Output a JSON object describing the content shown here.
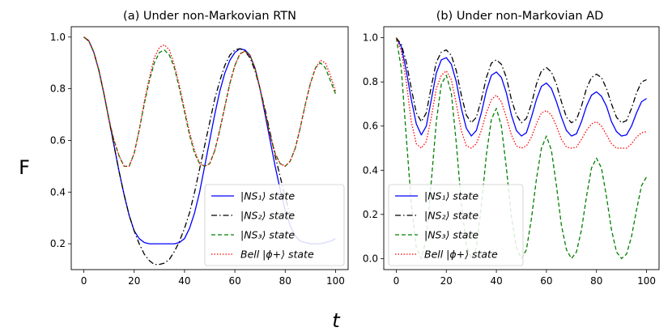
{
  "figure": {
    "ylabel": "F",
    "xlabel": "t"
  },
  "chart_data": [
    {
      "type": "line",
      "title": "(a) Under non-Markovian RTN",
      "xlim": [
        -5,
        105
      ],
      "ylim": [
        0.1,
        1.04
      ],
      "xticks": [
        "0",
        "20",
        "40",
        "60",
        "80",
        "100"
      ],
      "xtick_values": [
        0,
        20,
        40,
        60,
        80,
        100
      ],
      "yticks": [
        "0.2",
        "0.4",
        "0.6",
        "0.8",
        "1.0"
      ],
      "ytick_values": [
        0.2,
        0.4,
        0.6,
        0.8,
        1.0
      ],
      "legend_position": "lower-right",
      "series": [
        {
          "name": "|NS₁⟩ state",
          "color": "#0000ff",
          "dash": "",
          "x": [
            0,
            2,
            4,
            6,
            8,
            10,
            12,
            14,
            16,
            18,
            20,
            22,
            24,
            26,
            28,
            30,
            32,
            34,
            36,
            38,
            40,
            42,
            44,
            46,
            48,
            50,
            52,
            54,
            56,
            58,
            60,
            62,
            64,
            66,
            68,
            70,
            72,
            74,
            76,
            78,
            80,
            82,
            84,
            86,
            88,
            90,
            92,
            94,
            96,
            98,
            100
          ],
          "y": [
            1.0,
            0.985,
            0.94,
            0.87,
            0.78,
            0.68,
            0.58,
            0.48,
            0.39,
            0.31,
            0.25,
            0.22,
            0.205,
            0.2,
            0.2,
            0.2,
            0.2,
            0.2,
            0.2,
            0.205,
            0.22,
            0.26,
            0.32,
            0.4,
            0.5,
            0.6,
            0.7,
            0.79,
            0.86,
            0.91,
            0.94,
            0.955,
            0.95,
            0.93,
            0.88,
            0.8,
            0.7,
            0.6,
            0.5,
            0.41,
            0.33,
            0.27,
            0.23,
            0.21,
            0.205,
            0.2,
            0.2,
            0.2,
            0.205,
            0.21,
            0.22
          ]
        },
        {
          "name": "|NS₂⟩ state",
          "color": "#000000",
          "dash": "7,3,1.5,3",
          "x": [
            0,
            2,
            4,
            6,
            8,
            10,
            12,
            14,
            16,
            18,
            20,
            22,
            24,
            26,
            28,
            30,
            32,
            34,
            36,
            38,
            40,
            42,
            44,
            46,
            48,
            50,
            52,
            54,
            56,
            58,
            60,
            62,
            64,
            66,
            68,
            70,
            72,
            74,
            76,
            78,
            80,
            82
          ],
          "y": [
            1.0,
            0.985,
            0.94,
            0.87,
            0.78,
            0.68,
            0.58,
            0.48,
            0.39,
            0.31,
            0.25,
            0.2,
            0.16,
            0.135,
            0.12,
            0.12,
            0.125,
            0.14,
            0.17,
            0.21,
            0.26,
            0.32,
            0.4,
            0.49,
            0.58,
            0.67,
            0.76,
            0.83,
            0.89,
            0.93,
            0.95,
            0.955,
            0.945,
            0.92,
            0.87,
            0.8,
            0.72,
            0.63,
            0.54,
            0.46,
            0.38,
            0.31
          ]
        },
        {
          "name": "|NS₃⟩ state",
          "color": "#008000",
          "dash": "5,3",
          "x": [
            0,
            2,
            4,
            6,
            8,
            10,
            12,
            14,
            16,
            18,
            20,
            22,
            24,
            26,
            28,
            30,
            32,
            34,
            36,
            38,
            40,
            42,
            44,
            46,
            48,
            50,
            52,
            54,
            56,
            58,
            60,
            62,
            64,
            66,
            68,
            70,
            72,
            74,
            76,
            78,
            80,
            82,
            84,
            86,
            88,
            90,
            92,
            94,
            96,
            98,
            100
          ],
          "y": [
            1.0,
            0.985,
            0.94,
            0.87,
            0.78,
            0.68,
            0.6,
            0.54,
            0.5,
            0.5,
            0.55,
            0.64,
            0.74,
            0.83,
            0.9,
            0.94,
            0.95,
            0.93,
            0.88,
            0.8,
            0.71,
            0.62,
            0.55,
            0.51,
            0.5,
            0.51,
            0.56,
            0.64,
            0.73,
            0.82,
            0.89,
            0.935,
            0.945,
            0.93,
            0.88,
            0.8,
            0.71,
            0.62,
            0.55,
            0.51,
            0.5,
            0.52,
            0.57,
            0.65,
            0.74,
            0.82,
            0.88,
            0.9,
            0.88,
            0.83,
            0.78
          ]
        },
        {
          "name": "Bell |ϕ+⟩ state",
          "color": "#ff0000",
          "dash": "1.5,2",
          "x": [
            0,
            2,
            4,
            6,
            8,
            10,
            12,
            14,
            16,
            18,
            20,
            22,
            24,
            26,
            28,
            30,
            32,
            34,
            36,
            38,
            40,
            42,
            44,
            46,
            48,
            50,
            52,
            54,
            56,
            58,
            60,
            62,
            64,
            66,
            68,
            70,
            72,
            74,
            76,
            78,
            80,
            82,
            84,
            86,
            88,
            90,
            92,
            94,
            96,
            98,
            100
          ],
          "y": [
            1.0,
            0.985,
            0.94,
            0.87,
            0.78,
            0.68,
            0.6,
            0.54,
            0.5,
            0.5,
            0.55,
            0.64,
            0.75,
            0.84,
            0.92,
            0.96,
            0.97,
            0.95,
            0.89,
            0.81,
            0.72,
            0.63,
            0.56,
            0.51,
            0.5,
            0.51,
            0.56,
            0.64,
            0.73,
            0.82,
            0.89,
            0.935,
            0.945,
            0.93,
            0.88,
            0.8,
            0.71,
            0.62,
            0.55,
            0.51,
            0.5,
            0.52,
            0.57,
            0.65,
            0.74,
            0.82,
            0.88,
            0.91,
            0.9,
            0.85,
            0.79
          ]
        }
      ]
    },
    {
      "type": "line",
      "title": "(b) Under non-Markovian AD",
      "xlim": [
        -5,
        105
      ],
      "ylim": [
        -0.05,
        1.05
      ],
      "xticks": [
        "0",
        "20",
        "40",
        "60",
        "80",
        "100"
      ],
      "xtick_values": [
        0,
        20,
        40,
        60,
        80,
        100
      ],
      "yticks": [
        "0.0",
        "0.2",
        "0.4",
        "0.6",
        "0.8",
        "1.0"
      ],
      "ytick_values": [
        0.0,
        0.2,
        0.4,
        0.6,
        0.8,
        1.0
      ],
      "legend_position": "lower-left",
      "series": [
        {
          "name": "|NS₁⟩ state",
          "color": "#0000ff",
          "dash": "",
          "x": [
            0,
            2,
            4,
            6,
            8,
            10,
            12,
            14,
            16,
            18,
            20,
            22,
            24,
            26,
            28,
            30,
            32,
            34,
            36,
            38,
            40,
            42,
            44,
            46,
            48,
            50,
            52,
            54,
            56,
            58,
            60,
            62,
            64,
            66,
            68,
            70,
            72,
            74,
            76,
            78,
            80,
            82,
            84,
            86,
            88,
            90,
            92,
            94,
            96,
            98,
            100
          ],
          "y": [
            1.0,
            0.96,
            0.85,
            0.72,
            0.61,
            0.56,
            0.6,
            0.72,
            0.84,
            0.9,
            0.91,
            0.88,
            0.8,
            0.68,
            0.59,
            0.555,
            0.58,
            0.66,
            0.76,
            0.83,
            0.845,
            0.82,
            0.75,
            0.65,
            0.58,
            0.555,
            0.57,
            0.64,
            0.72,
            0.78,
            0.795,
            0.77,
            0.71,
            0.64,
            0.58,
            0.555,
            0.565,
            0.62,
            0.69,
            0.74,
            0.755,
            0.735,
            0.69,
            0.62,
            0.575,
            0.555,
            0.56,
            0.6,
            0.66,
            0.71,
            0.725
          ]
        },
        {
          "name": "|NS₂⟩ state",
          "color": "#000000",
          "dash": "7,3,1.5,3",
          "x": [
            0,
            2,
            4,
            6,
            8,
            10,
            12,
            14,
            16,
            18,
            20,
            22,
            24,
            26,
            28,
            30,
            32,
            34,
            36,
            38,
            40,
            42,
            44,
            46,
            48,
            50,
            52,
            54,
            56,
            58,
            60,
            62,
            64,
            66,
            68,
            70,
            72,
            74,
            76,
            78,
            80,
            82,
            84,
            86,
            88,
            90,
            92,
            94,
            96,
            98,
            100
          ],
          "y": [
            1.0,
            0.97,
            0.89,
            0.77,
            0.66,
            0.62,
            0.66,
            0.78,
            0.89,
            0.935,
            0.945,
            0.92,
            0.85,
            0.74,
            0.65,
            0.615,
            0.64,
            0.72,
            0.82,
            0.885,
            0.9,
            0.88,
            0.82,
            0.72,
            0.65,
            0.615,
            0.635,
            0.7,
            0.79,
            0.85,
            0.865,
            0.845,
            0.79,
            0.71,
            0.64,
            0.615,
            0.63,
            0.69,
            0.77,
            0.82,
            0.835,
            0.82,
            0.77,
            0.7,
            0.64,
            0.615,
            0.625,
            0.68,
            0.75,
            0.8,
            0.81
          ]
        },
        {
          "name": "|NS₃⟩ state",
          "color": "#008000",
          "dash": "5,3",
          "x": [
            0,
            2,
            4,
            6,
            8,
            10,
            12,
            14,
            16,
            18,
            20,
            22,
            24,
            26,
            28,
            30,
            32,
            34,
            36,
            38,
            40,
            42,
            44,
            46,
            48,
            50,
            52,
            54,
            56,
            58,
            60,
            62,
            64,
            66,
            68,
            70,
            72,
            74,
            76,
            78,
            80,
            82,
            84,
            86,
            88,
            90,
            92,
            94,
            96,
            98,
            100
          ],
          "y": [
            1.0,
            0.86,
            0.55,
            0.25,
            0.05,
            0.0,
            0.09,
            0.35,
            0.62,
            0.79,
            0.83,
            0.75,
            0.52,
            0.25,
            0.06,
            0.0,
            0.05,
            0.24,
            0.47,
            0.63,
            0.68,
            0.6,
            0.41,
            0.19,
            0.05,
            0.0,
            0.04,
            0.18,
            0.36,
            0.5,
            0.555,
            0.49,
            0.33,
            0.15,
            0.04,
            0.0,
            0.03,
            0.13,
            0.28,
            0.41,
            0.455,
            0.41,
            0.28,
            0.13,
            0.03,
            0.0,
            0.02,
            0.1,
            0.22,
            0.33,
            0.37
          ]
        },
        {
          "name": "Bell |ϕ+⟩ state",
          "color": "#ff0000",
          "dash": "1.5,2",
          "x": [
            0,
            2,
            4,
            6,
            8,
            10,
            12,
            14,
            16,
            18,
            20,
            22,
            24,
            26,
            28,
            30,
            32,
            34,
            36,
            38,
            40,
            42,
            44,
            46,
            48,
            50,
            52,
            54,
            56,
            58,
            60,
            62,
            64,
            66,
            68,
            70,
            72,
            74,
            76,
            78,
            80,
            82,
            84,
            86,
            88,
            90,
            92,
            94,
            96,
            98,
            100
          ],
          "y": [
            1.0,
            0.94,
            0.8,
            0.62,
            0.52,
            0.5,
            0.53,
            0.64,
            0.77,
            0.83,
            0.85,
            0.81,
            0.7,
            0.58,
            0.51,
            0.5,
            0.52,
            0.58,
            0.66,
            0.72,
            0.74,
            0.71,
            0.64,
            0.56,
            0.51,
            0.5,
            0.51,
            0.55,
            0.61,
            0.66,
            0.67,
            0.65,
            0.6,
            0.54,
            0.505,
            0.5,
            0.505,
            0.54,
            0.58,
            0.61,
            0.62,
            0.6,
            0.56,
            0.52,
            0.5,
            0.5,
            0.5,
            0.52,
            0.55,
            0.57,
            0.575
          ]
        }
      ]
    }
  ]
}
